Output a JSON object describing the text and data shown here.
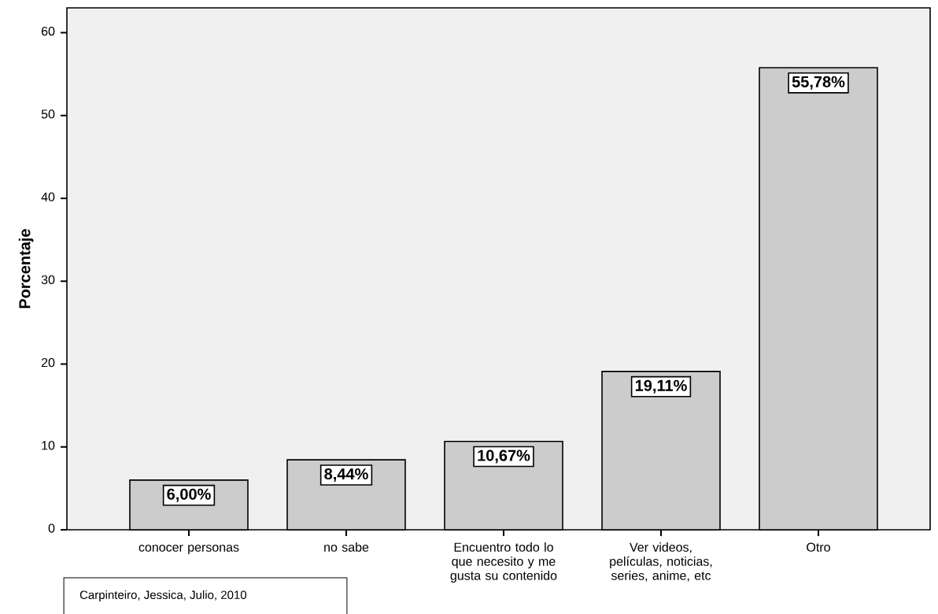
{
  "chart_data": {
    "type": "bar",
    "ylabel": "Porcentaje",
    "categories": [
      "conocer personas",
      "no sabe",
      "Encuentro todo lo que necesito y me gusta su contenido",
      "Ver videos, películas, noticias, series, anime, etc",
      "Otro"
    ],
    "values": [
      6.0,
      8.44,
      10.67,
      19.11,
      55.78
    ],
    "value_labels": [
      "6,00%",
      "8,44%",
      "10,67%",
      "19,11%",
      "55,78%"
    ],
    "color": "#cccccc",
    "ylim": [
      0,
      63
    ],
    "yticks": [
      0,
      10,
      20,
      30,
      40,
      50,
      60
    ],
    "grid": false,
    "annotations": [
      "Carpinteiro, Jessica, Julio, 2010"
    ]
  }
}
